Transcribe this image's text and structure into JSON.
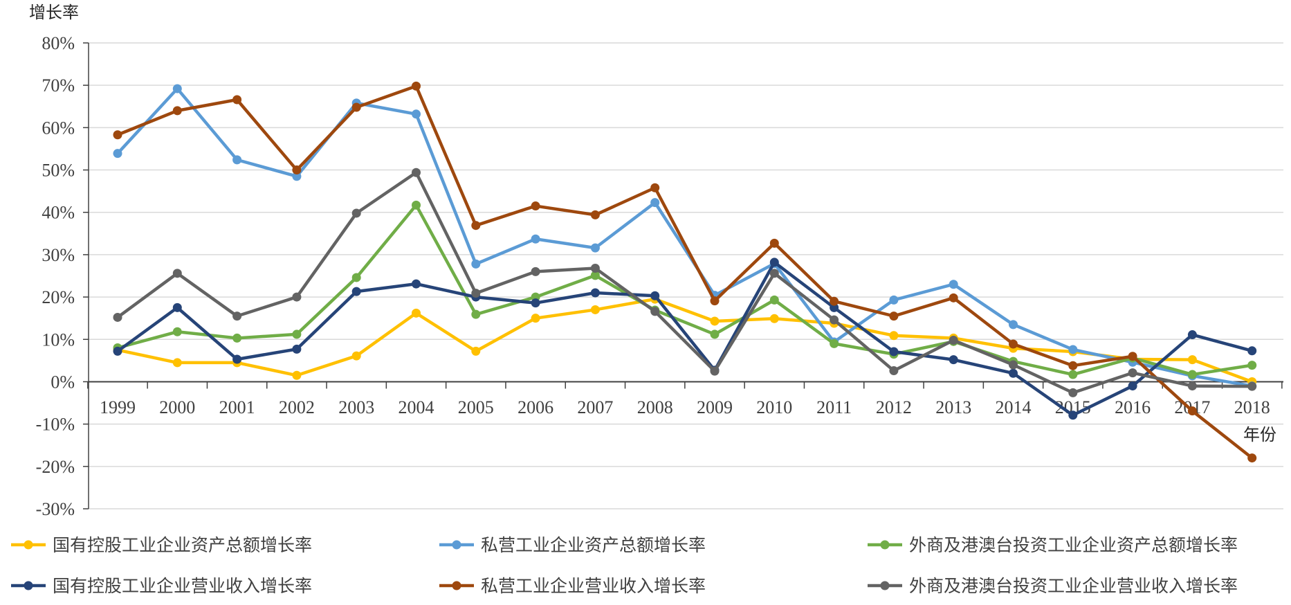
{
  "chart_data": {
    "type": "line",
    "ylabel": "增长率",
    "xlabel": "年份",
    "x": [
      "1999",
      "2000",
      "2001",
      "2002",
      "2003",
      "2004",
      "2005",
      "2006",
      "2007",
      "2008",
      "2009",
      "2010",
      "2011",
      "2012",
      "2013",
      "2014",
      "2015",
      "2016",
      "2017",
      "2018"
    ],
    "ylim": [
      -30,
      80
    ],
    "yticks": [
      "80%",
      "70%",
      "60%",
      "50%",
      "40%",
      "30%",
      "20%",
      "10%",
      "0%",
      "-10%",
      "-20%",
      "-30%"
    ],
    "grid": true,
    "legend_position": "bottom",
    "series": [
      {
        "name": "国有控股工业企业资产总额增长率",
        "color": "#FFC000",
        "values": [
          7.5,
          4.5,
          4.5,
          1.5,
          6.1,
          16.2,
          7.2,
          15.0,
          17.0,
          19.5,
          14.3,
          14.9,
          13.8,
          10.9,
          10.3,
          7.9,
          7.1,
          5.3,
          5.2,
          0.0
        ]
      },
      {
        "name": "私营工业企业资产总额增长率",
        "color": "#5B9BD5",
        "values": [
          53.9,
          69.2,
          52.4,
          48.5,
          65.8,
          63.2,
          27.8,
          33.7,
          31.6,
          42.3,
          20.4,
          27.9,
          9.4,
          19.3,
          23.0,
          13.5,
          7.6,
          4.6,
          1.4,
          -1.0
        ]
      },
      {
        "name": "外商及港澳台投资工业企业资产总额增长率",
        "color": "#70AD47",
        "values": [
          8.0,
          11.8,
          10.3,
          11.2,
          24.6,
          41.7,
          15.9,
          20.0,
          25.1,
          16.9,
          11.2,
          19.3,
          9.0,
          6.5,
          9.5,
          4.8,
          1.7,
          5.6,
          1.7,
          3.9
        ]
      },
      {
        "name": "国有控股工业企业营业收入增长率",
        "color": "#264478",
        "values": [
          7.2,
          17.5,
          5.3,
          7.7,
          21.3,
          23.1,
          20.0,
          18.6,
          21.0,
          20.3,
          2.7,
          28.2,
          17.5,
          7.1,
          5.2,
          2.0,
          -7.9,
          -1.0,
          11.1,
          7.3
        ]
      },
      {
        "name": "私营工业企业营业收入增长率",
        "color": "#9E480E",
        "values": [
          58.3,
          64.0,
          66.6,
          50.0,
          64.8,
          69.8,
          36.9,
          41.5,
          39.4,
          45.8,
          19.1,
          32.7,
          19.0,
          15.5,
          19.8,
          8.9,
          3.8,
          6.0,
          -6.9,
          -18.0
        ]
      },
      {
        "name": "外商及港澳台投资工业企业营业收入增长率",
        "color": "#636363",
        "values": [
          15.2,
          25.6,
          15.5,
          20.0,
          39.8,
          49.4,
          20.9,
          26.0,
          26.8,
          16.6,
          2.5,
          25.6,
          14.6,
          2.6,
          9.8,
          4.0,
          -2.6,
          2.1,
          -1.0,
          -1.1
        ]
      }
    ]
  }
}
